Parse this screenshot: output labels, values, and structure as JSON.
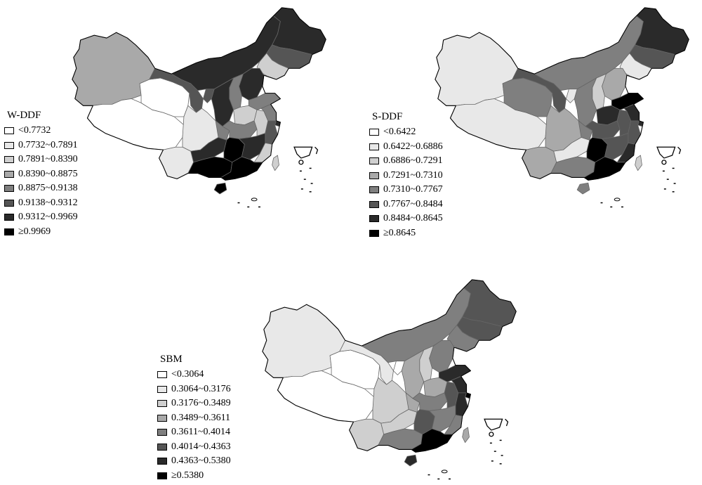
{
  "maps": [
    {
      "id": "w-ddf",
      "legend": {
        "title": "W-DDF",
        "colors": [
          "#ffffff",
          "#e8e8e8",
          "#cfcfcf",
          "#a9a9a9",
          "#7f7f7f",
          "#555555",
          "#2a2a2a",
          "#000000"
        ],
        "labels": [
          "<0.7732",
          "0.7732~0.7891",
          "0.7891~0.8390",
          "0.8390~0.8875",
          "0.8875~0.9138",
          "0.9138~0.9312",
          "0.9312~0.9969",
          "≥0.9969"
        ]
      },
      "region_classes": {
        "xinjiang": 3,
        "tibet": 0,
        "qinghai": 0,
        "gansu": 5,
        "inner_mongolia": 6,
        "heilongjiang": 6,
        "jilin": 5,
        "liaoning": 2,
        "beijing": 7,
        "tianjin": 5,
        "hebei": 6,
        "shanxi": 4,
        "shaanxi": 6,
        "ningxia": 5,
        "henan": 2,
        "shandong": 4,
        "sichuan": 1,
        "chongqing": 4,
        "hubei": 4,
        "anhui": 2,
        "jiangsu": 4,
        "shanghai": 6,
        "zhejiang": 5,
        "yunnan": 1,
        "guizhou": 6,
        "hunan": 7,
        "jiangxi": 6,
        "fujian": 2,
        "guangxi": 7,
        "guangdong": 7,
        "hainan": 7,
        "taiwan": 2
      }
    },
    {
      "id": "s-ddf",
      "legend": {
        "title": "S-DDF",
        "colors": [
          "#ffffff",
          "#e8e8e8",
          "#cfcfcf",
          "#a9a9a9",
          "#7f7f7f",
          "#555555",
          "#2a2a2a",
          "#000000"
        ],
        "labels": [
          "<0.6422",
          "0.6422~0.6886",
          "0.6886~0.7291",
          "0.7291~0.7310",
          "0.7310~0.7767",
          "0.7767~0.8484",
          "0.8484~0.8645",
          "≥0.8645"
        ]
      },
      "region_classes": {
        "xinjiang": 1,
        "tibet": 1,
        "qinghai": 4,
        "gansu": 5,
        "inner_mongolia": 4,
        "heilongjiang": 6,
        "jilin": 5,
        "liaoning": 1,
        "beijing": 7,
        "tianjin": 5,
        "hebei": 3,
        "shanxi": 2,
        "shaanxi": 4,
        "ningxia": 1,
        "henan": 6,
        "shandong": 7,
        "sichuan": 3,
        "chongqing": 4,
        "hubei": 5,
        "anhui": 5,
        "jiangsu": 6,
        "shanghai": 6,
        "zhejiang": 5,
        "yunnan": 3,
        "guizhou": 1,
        "hunan": 7,
        "jiangxi": 5,
        "fujian": 6,
        "guangxi": 4,
        "guangdong": 7,
        "hainan": 4,
        "taiwan": 2
      }
    },
    {
      "id": "sbm",
      "legend": {
        "title": "SBM",
        "colors": [
          "#ffffff",
          "#e8e8e8",
          "#cfcfcf",
          "#a9a9a9",
          "#7f7f7f",
          "#555555",
          "#2a2a2a",
          "#000000"
        ],
        "labels": [
          "<0.3064",
          "0.3064~0.3176",
          "0.3176~0.3489",
          "0.3489~0.3611",
          "0.3611~0.4014",
          "0.4014~0.4363",
          "0.4363~0.5380",
          "≥0.5380"
        ]
      },
      "region_classes": {
        "xinjiang": 1,
        "tibet": 0,
        "qinghai": 0,
        "gansu": 1,
        "inner_mongolia": 4,
        "heilongjiang": 5,
        "jilin": 5,
        "liaoning": 4,
        "beijing": 7,
        "tianjin": 6,
        "hebei": 4,
        "shanxi": 2,
        "shaanxi": 3,
        "ningxia": 0,
        "henan": 3,
        "shandong": 6,
        "sichuan": 2,
        "chongqing": 3,
        "hubei": 4,
        "anhui": 5,
        "jiangsu": 6,
        "shanghai": 7,
        "zhejiang": 6,
        "yunnan": 2,
        "guizhou": 2,
        "hunan": 5,
        "jiangxi": 4,
        "fujian": 4,
        "guangxi": 4,
        "guangdong": 7,
        "hainan": 6,
        "taiwan": 3
      }
    }
  ]
}
